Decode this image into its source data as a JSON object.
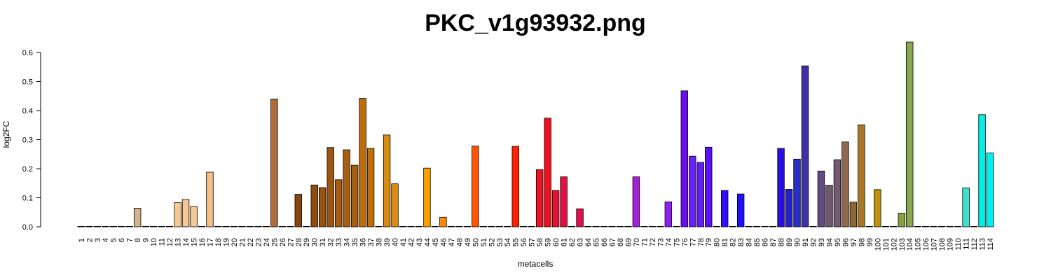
{
  "chart_data": {
    "type": "bar",
    "title": "PKC_v1g93932.png",
    "xlabel": "metacells",
    "ylabel": "log2FC",
    "ylim": [
      0,
      0.62
    ],
    "yticks": [
      "0.0",
      "0.1",
      "0.2",
      "0.3",
      "0.4",
      "0.5",
      "0.6"
    ],
    "categories": [
      "1",
      "2",
      "3",
      "4",
      "5",
      "6",
      "7",
      "8",
      "9",
      "10",
      "11",
      "12",
      "13",
      "14",
      "15",
      "16",
      "17",
      "18",
      "19",
      "20",
      "21",
      "22",
      "23",
      "24",
      "25",
      "26",
      "27",
      "28",
      "29",
      "30",
      "31",
      "32",
      "33",
      "34",
      "35",
      "36",
      "37",
      "38",
      "39",
      "40",
      "41",
      "42",
      "43",
      "44",
      "45",
      "46",
      "47",
      "48",
      "49",
      "50",
      "51",
      "52",
      "53",
      "54",
      "55",
      "56",
      "57",
      "58",
      "59",
      "60",
      "61",
      "62",
      "63",
      "64",
      "65",
      "66",
      "67",
      "68",
      "69",
      "70",
      "71",
      "72",
      "73",
      "74",
      "75",
      "76",
      "77",
      "78",
      "79",
      "80",
      "81",
      "82",
      "83",
      "84",
      "85",
      "86",
      "87",
      "88",
      "89",
      "90",
      "91",
      "92",
      "93",
      "94",
      "95",
      "96",
      "97",
      "98",
      "99",
      "100",
      "101",
      "102",
      "103",
      "104",
      "105",
      "106",
      "107",
      "108",
      "109",
      "110",
      "111",
      "112",
      "113",
      "114"
    ],
    "values": [
      0,
      0,
      0,
      0,
      0,
      0,
      0,
      0.064,
      0,
      0,
      0,
      0,
      0.083,
      0.094,
      0.07,
      0,
      0.188,
      0,
      0,
      0,
      0,
      0,
      0,
      0,
      0.44,
      0,
      0,
      0.112,
      0,
      0.144,
      0.135,
      0.273,
      0.162,
      0.265,
      0.212,
      0.442,
      0.27,
      0,
      0.316,
      0.148,
      0,
      0,
      0,
      0.202,
      0,
      0.033,
      0,
      0,
      0,
      0.278,
      0,
      0,
      0,
      0,
      0.277,
      0,
      0,
      0.197,
      0.374,
      0.125,
      0.172,
      0,
      0.062,
      0,
      0,
      0,
      0,
      0,
      0,
      0.172,
      0,
      0,
      0,
      0.086,
      0,
      0.468,
      0.243,
      0.222,
      0.274,
      0,
      0.125,
      0,
      0.113,
      0,
      0,
      0,
      0,
      0.27,
      0.129,
      0.233,
      0.554,
      0,
      0.192,
      0.143,
      0.231,
      0.292,
      0.085,
      0.351,
      0,
      0.128,
      0,
      0,
      0.047,
      0.636,
      0,
      0,
      0,
      0,
      0,
      0,
      0.134,
      0,
      0.386,
      0.254
    ],
    "colors": [
      "#d9b99b",
      "#d9b99b",
      "#d9b99b",
      "#d9b99b",
      "#d9b99b",
      "#d9b99b",
      "#d9b99b",
      "#d2b48c",
      "#f5c896",
      "#f5c896",
      "#f5c896",
      "#f5c896",
      "#f5c896",
      "#f5c896",
      "#f5c896",
      "#f5c896",
      "#f4c088",
      "#b07040",
      "#b07040",
      "#b07040",
      "#b07040",
      "#b07040",
      "#b07040",
      "#b07040",
      "#b06c3a",
      "#8b4513",
      "#8b4513",
      "#8b4513",
      "#8b4513",
      "#914c12",
      "#9a5210",
      "#9c5510",
      "#a65c10",
      "#a85e10",
      "#a85e10",
      "#bf6c0a",
      "#c06e08",
      "#d98a10",
      "#d98a10",
      "#e08c10",
      "#f0a000",
      "#f0a000",
      "#f0a000",
      "#ffa000",
      "#ff8c00",
      "#ff8c00",
      "#ff5000",
      "#ff5000",
      "#ff5000",
      "#ff5500",
      "#ff2a00",
      "#ff2a00",
      "#ff2a00",
      "#ff2a00",
      "#ff2200",
      "#ff0000",
      "#ff0000",
      "#f01020",
      "#f01020",
      "#e81030",
      "#e01040",
      "#e01040",
      "#e01048",
      "#a020e0",
      "#a020e0",
      "#a020e0",
      "#a020e0",
      "#a020e0",
      "#a020e0",
      "#a820d8",
      "#9020f0",
      "#9020f0",
      "#9020f0",
      "#9020f0",
      "#7020f0",
      "#6a10f0",
      "#6a20f8",
      "#6220f8",
      "#5a10f8",
      "#3010ff",
      "#3010ff",
      "#2010ff",
      "#2010ff",
      "#2010ff",
      "#2010ff",
      "#2010ff",
      "#2010ff",
      "#2a10e0",
      "#2a20c8",
      "#2830c8",
      "#4030a8",
      "#604a80",
      "#604a80",
      "#705870",
      "#745a70",
      "#906850",
      "#906830",
      "#a87828",
      "#c09010",
      "#c09010",
      "#8aa040",
      "#8aa040",
      "#8aa040",
      "#8aa850",
      "#8aa850",
      "#8aa850",
      "#8aa850",
      "#8aa850",
      "#8aa850",
      "#40e0d0",
      "#40e0d0",
      "#40e0d0",
      "#00f0e8",
      "#00f0f0"
    ]
  }
}
